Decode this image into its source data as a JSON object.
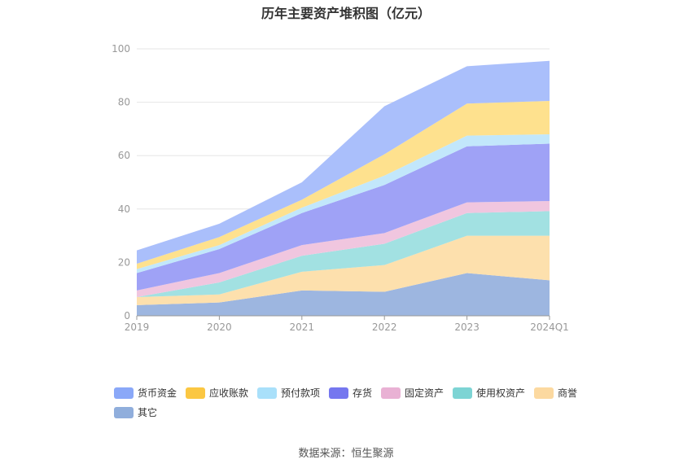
{
  "chart_data": {
    "type": "area",
    "stacked": true,
    "title": "历年主要资产堆积图（亿元）",
    "categories": [
      "2019",
      "2020",
      "2021",
      "2022",
      "2023",
      "2024Q1"
    ],
    "ylim": [
      0,
      100
    ],
    "yticks": [
      "0",
      "20",
      "40",
      "60",
      "80",
      "100"
    ],
    "grid": true,
    "legend_position": "bottom",
    "series": [
      {
        "name": "其它",
        "color": "#9db6e0",
        "values": [
          4,
          5,
          9.5,
          9,
          16,
          13.3
        ]
      },
      {
        "name": "商誉",
        "color": "#fde0ad",
        "values": [
          3,
          3,
          7,
          10,
          14,
          16.7
        ]
      },
      {
        "name": "使用权资产",
        "color": "#a2e1e2",
        "values": [
          0,
          4.5,
          6,
          8,
          8.5,
          9.2
        ]
      },
      {
        "name": "固定资产",
        "color": "#f0c6df",
        "values": [
          2.5,
          3.5,
          4,
          4,
          4,
          3.8
        ]
      },
      {
        "name": "存货",
        "color": "#9fa2f6",
        "values": [
          6.5,
          9,
          12,
          18,
          21,
          21.5
        ]
      },
      {
        "name": "预付款项",
        "color": "#c2e7fb",
        "values": [
          1.5,
          1.5,
          2,
          3.5,
          4,
          3.5
        ]
      },
      {
        "name": "应收账款",
        "color": "#fee18e",
        "values": [
          2,
          3,
          3,
          8,
          12,
          12.5
        ]
      },
      {
        "name": "货币资金",
        "color": "#aabffb",
        "values": [
          5,
          5,
          6.5,
          18,
          14,
          15
        ]
      }
    ]
  },
  "legend": [
    {
      "label": "货币资金",
      "color": "#8aa8f8"
    },
    {
      "label": "应收账款",
      "color": "#fbc742"
    },
    {
      "label": "预付款项",
      "color": "#a9e0fa"
    },
    {
      "label": "存货",
      "color": "#7577ef"
    },
    {
      "label": "固定资产",
      "color": "#e9b1d4"
    },
    {
      "label": "使用权资产",
      "color": "#7dd4d4"
    },
    {
      "label": "商誉",
      "color": "#fcd9a0"
    },
    {
      "label": "其它",
      "color": "#90aedc"
    }
  ],
  "source": "数据来源：恒生聚源"
}
